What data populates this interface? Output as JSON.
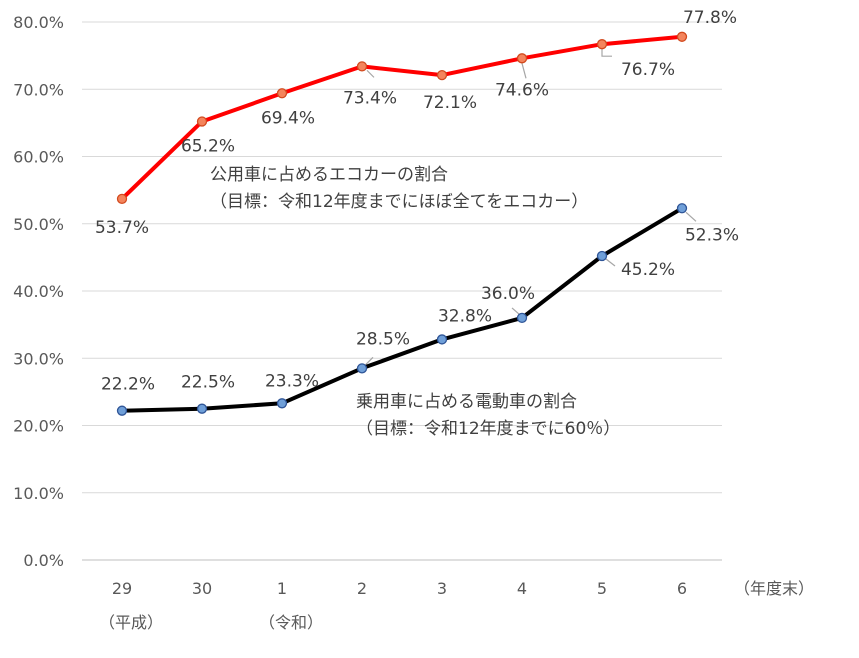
{
  "chart_data": {
    "type": "line",
    "title": "",
    "xlabel": "",
    "ylabel": "",
    "categories": [
      "29",
      "30",
      "1",
      "2",
      "3",
      "4",
      "5",
      "6"
    ],
    "x_unit_label": "（年度末）",
    "era_labels": [
      {
        "at_category": "29",
        "text": "（平成）"
      },
      {
        "at_category": "1",
        "text": "（令和）"
      }
    ],
    "y_ticks": [
      "0.0%",
      "10.0%",
      "20.0%",
      "30.0%",
      "40.0%",
      "50.0%",
      "60.0%",
      "70.0%",
      "80.0%"
    ],
    "ylim": [
      0,
      80
    ],
    "grid": true,
    "series": [
      {
        "color": "#ff0000",
        "marker_fill": "#f4845c",
        "marker_stroke": "#d24a1e",
        "values": [
          53.7,
          65.2,
          69.4,
          73.4,
          72.1,
          74.6,
          76.7,
          77.8
        ],
        "labels": [
          "53.7%",
          "65.2%",
          "69.4%",
          "73.4%",
          "72.1%",
          "74.6%",
          "76.7%",
          "77.8%"
        ],
        "annotation": [
          "公用車に占めるエコカーの割合",
          "（目標：令和12年度までにほぼ全てをエコカー）"
        ]
      },
      {
        "color": "#000000",
        "marker_fill": "#6f9fd8",
        "marker_stroke": "#2f5597",
        "values": [
          22.2,
          22.5,
          23.3,
          28.5,
          32.8,
          36.0,
          45.2,
          52.3
        ],
        "labels": [
          "22.2%",
          "22.5%",
          "23.3%",
          "28.5%",
          "32.8%",
          "36.0%",
          "45.2%",
          "52.3%"
        ],
        "annotation": [
          "乗用車に占める電動車の割合",
          "（目標：令和12年度までに60％）"
        ]
      }
    ]
  }
}
